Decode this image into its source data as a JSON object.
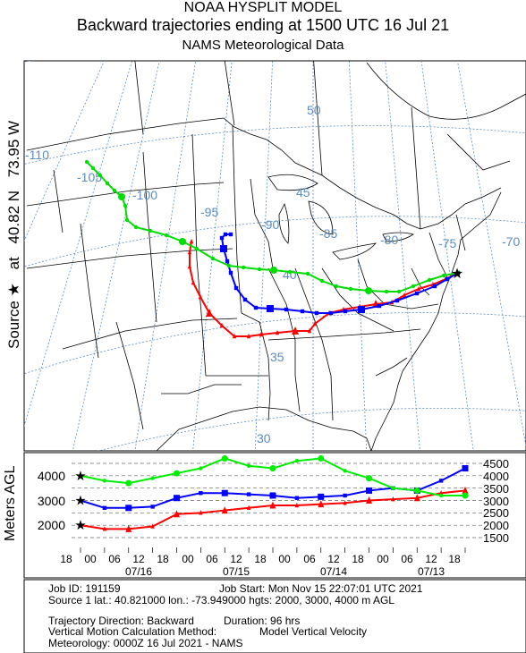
{
  "title": {
    "line1": "NOAA HYSPLIT MODEL",
    "line2": "Backward trajectories ending at 1500 UTC 16 Jul 21",
    "line3": "NAMS Meteorological Data"
  },
  "source_label": {
    "text": "Source ★ at 40.82 N 73.95 W",
    "prefix": "Source",
    "star": "★",
    "at": "at",
    "lat": "40.82 N",
    "lon": "73.95 W"
  },
  "map": {
    "longitude_labels": [
      "-110",
      "-105",
      "-100",
      "-95",
      "-90",
      "-85",
      "-80",
      "-75",
      "-70"
    ],
    "latitude_labels": [
      "50",
      "45",
      "40",
      "35",
      "30"
    ],
    "trajectories": [
      {
        "name": "2000 m AGL",
        "color": "#ff0000"
      },
      {
        "name": "3000 m AGL",
        "color": "#0000ff"
      },
      {
        "name": "4000 m AGL",
        "color": "#00ee00"
      }
    ]
  },
  "height_panel": {
    "ylabel": "Meters AGL",
    "left_ticks": [
      "4000",
      "3000",
      "2000"
    ],
    "right_ticks": [
      "4500",
      "4000",
      "3500",
      "3000",
      "2500",
      "2000",
      "1500"
    ],
    "hour_labels": [
      "18",
      "12",
      "06",
      "00",
      "18",
      "12",
      "06",
      "00",
      "18",
      "12",
      "06",
      "00",
      "18",
      "12",
      "06",
      "00",
      "18"
    ],
    "date_labels": [
      "07/16",
      "07/15",
      "07/14",
      "07/13"
    ]
  },
  "chart_data": {
    "type": "line",
    "xlabel": "",
    "ylabel": "Meters AGL",
    "x_unit": "hours back from 1500 UTC 16 Jul 21",
    "x": [
      0,
      6,
      12,
      18,
      24,
      30,
      36,
      42,
      48,
      54,
      60,
      66,
      72,
      78,
      84,
      90,
      96
    ],
    "ylim": [
      1500,
      4500
    ],
    "series": [
      {
        "name": "2000 m",
        "color": "#ff0000",
        "values": [
          2000,
          1850,
          1850,
          1950,
          2450,
          2500,
          2600,
          2700,
          2800,
          2800,
          2850,
          2900,
          3000,
          3050,
          3100,
          3300,
          3400
        ]
      },
      {
        "name": "3000 m",
        "color": "#0000ff",
        "values": [
          3000,
          2700,
          2700,
          2750,
          3100,
          3300,
          3300,
          3250,
          3200,
          3100,
          3150,
          3200,
          3400,
          3500,
          3400,
          3800,
          4300
        ]
      },
      {
        "name": "4000 m",
        "color": "#00ee00",
        "values": [
          4000,
          3800,
          3700,
          3900,
          4100,
          4300,
          4700,
          4400,
          4300,
          4600,
          4700,
          4200,
          3900,
          3500,
          3400,
          3200,
          3200
        ]
      }
    ]
  },
  "footer": {
    "job_id": "Job ID: 191159",
    "job_start": "Job Start: Mon Nov 15 22:07:01 UTC 2021",
    "source_line": "Source 1 lat.: 40.821000 lon.: -73.949000 hgts: 2000, 3000, 4000 m AGL",
    "direction": "Trajectory Direction: Backward",
    "duration": "Duration: 96 hrs",
    "vertical": "Vertical Motion Calculation Method:",
    "vertical_value": "Model Vertical Velocity",
    "meteorology": "Meteorology: 0000Z 16 Jul 2021 - NAMS"
  }
}
